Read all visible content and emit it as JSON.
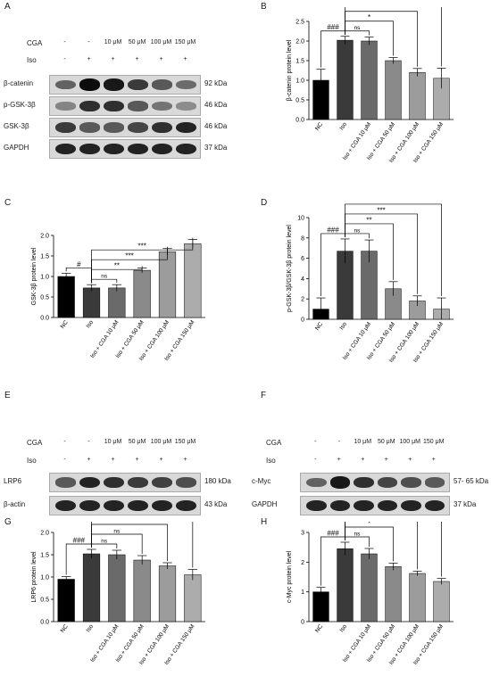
{
  "panel_letters": [
    "A",
    "B",
    "C",
    "D",
    "E",
    "F",
    "G",
    "H"
  ],
  "blot_A": {
    "treat_rows": [
      {
        "label": "CGA",
        "cells": [
          "-",
          "-",
          "10 μM",
          "50 μM",
          "100 μM",
          "150 μM"
        ]
      },
      {
        "label": "Iso",
        "cells": [
          "-",
          "+",
          "+",
          "+",
          "+",
          "+"
        ]
      }
    ],
    "bands": [
      {
        "label": "β-catenin",
        "kda": "92 kDa",
        "intensity": [
          0.55,
          0.95,
          0.9,
          0.75,
          0.6,
          0.5
        ]
      },
      {
        "label": "p-GSK-3β",
        "kda": "46 kDa",
        "intensity": [
          0.35,
          0.8,
          0.8,
          0.6,
          0.45,
          0.3
        ]
      },
      {
        "label": "GSK-3β",
        "kda": "46 kDa",
        "intensity": [
          0.75,
          0.6,
          0.6,
          0.7,
          0.8,
          0.85
        ]
      },
      {
        "label": "GAPDH",
        "kda": "37 kDa",
        "intensity": [
          0.85,
          0.85,
          0.85,
          0.85,
          0.85,
          0.85
        ]
      }
    ]
  },
  "blot_E": {
    "treat_rows": [
      {
        "label": "CGA",
        "cells": [
          "-",
          "-",
          "10 μM",
          "50 μM",
          "100 μM",
          "150 μM"
        ]
      },
      {
        "label": "Iso",
        "cells": [
          "-",
          "+",
          "+",
          "+",
          "+",
          "+"
        ]
      }
    ],
    "bands": [
      {
        "label": "LRP6",
        "kda": "180 kDa",
        "intensity": [
          0.6,
          0.85,
          0.8,
          0.75,
          0.72,
          0.65
        ]
      },
      {
        "label": "β-actin",
        "kda": "43 kDa",
        "intensity": [
          0.85,
          0.85,
          0.85,
          0.85,
          0.85,
          0.85
        ]
      }
    ]
  },
  "blot_F": {
    "treat_rows": [
      {
        "label": "CGA",
        "cells": [
          "-",
          "-",
          "10 μM",
          "50 μM",
          "100 μM",
          "150 μM"
        ]
      },
      {
        "label": "Iso",
        "cells": [
          "-",
          "+",
          "+",
          "+",
          "+",
          "+"
        ]
      }
    ],
    "bands": [
      {
        "label": "c-Myc",
        "kda": "57- 65 kDa",
        "intensity": [
          0.55,
          0.9,
          0.8,
          0.7,
          0.65,
          0.6
        ]
      },
      {
        "label": "GAPDH",
        "kda": "37 kDa",
        "intensity": [
          0.85,
          0.85,
          0.85,
          0.85,
          0.85,
          0.85
        ]
      }
    ]
  },
  "chart_data": [
    {
      "id": "B",
      "type": "bar",
      "categories": [
        "NC",
        "Iso",
        "Iso + CGA 10 μM",
        "Iso + CGA 50 μM",
        "Iso + CGA 100 μM",
        "Iso + CGA 150 μM"
      ],
      "values": [
        1.0,
        2.02,
        2.0,
        1.5,
        1.2,
        1.05
      ],
      "errors": [
        0.28,
        0.1,
        0.1,
        0.08,
        0.1,
        0.26
      ],
      "ylabel": "β-catenin protein level",
      "ylim": [
        0,
        2.5
      ],
      "yticks": [
        "0.0",
        "0.5",
        "1.0",
        "1.5",
        "2.0",
        "2.5"
      ],
      "colors": [
        "#000000",
        "#3a3a3a",
        "#6a6a6a",
        "#8a8a8a",
        "#9c9c9c",
        "#acacac"
      ],
      "annotations": [
        {
          "from": 0,
          "to": 1,
          "text": "###"
        },
        {
          "from": 1,
          "to": 2,
          "text": "ns"
        },
        {
          "from": 1,
          "to": 3,
          "text": "*"
        },
        {
          "from": 1,
          "to": 4,
          "text": "**"
        },
        {
          "from": 1,
          "to": 5,
          "text": "***"
        }
      ]
    },
    {
      "id": "C",
      "type": "bar",
      "categories": [
        "NC",
        "Iso",
        "Iso + CGA 10 μM",
        "Iso + CGA 50 μM",
        "Iso + CGA 100 μM",
        "Iso + CGA 150 μM"
      ],
      "values": [
        1.0,
        0.72,
        0.72,
        1.15,
        1.6,
        1.8
      ],
      "errors": [
        0.08,
        0.08,
        0.08,
        0.06,
        0.08,
        0.1
      ],
      "ylabel": "GSK-3β protein level",
      "ylim": [
        0,
        2.0
      ],
      "yticks": [
        "0.0",
        "0.5",
        "1.0",
        "1.5",
        "2.0"
      ],
      "colors": [
        "#000000",
        "#3a3a3a",
        "#6a6a6a",
        "#8a8a8a",
        "#9c9c9c",
        "#acacac"
      ],
      "annotations": [
        {
          "from": 0,
          "to": 1,
          "text": "#"
        },
        {
          "from": 1,
          "to": 2,
          "text": "ns"
        },
        {
          "from": 1,
          "to": 3,
          "text": "**"
        },
        {
          "from": 1,
          "to": 4,
          "text": "***"
        },
        {
          "from": 1,
          "to": 5,
          "text": "***"
        }
      ]
    },
    {
      "id": "D",
      "type": "bar",
      "categories": [
        "NC",
        "Iso",
        "Iso + CGA 10 μM",
        "Iso + CGA 50 μM",
        "Iso + CGA 100 μM",
        "Iso + CGA 150 μM"
      ],
      "values": [
        1.0,
        6.7,
        6.7,
        3.0,
        1.8,
        1.0
      ],
      "errors": [
        1.1,
        1.2,
        1.1,
        0.7,
        0.5,
        1.1
      ],
      "ylabel": "p-GSK-3β/GSK-3β protein level",
      "ylim": [
        0,
        10
      ],
      "yticks": [
        "0",
        "2",
        "4",
        "6",
        "8",
        "10"
      ],
      "colors": [
        "#000000",
        "#3a3a3a",
        "#6a6a6a",
        "#8a8a8a",
        "#9c9c9c",
        "#acacac"
      ],
      "annotations": [
        {
          "from": 0,
          "to": 1,
          "text": "###"
        },
        {
          "from": 1,
          "to": 2,
          "text": "ns"
        },
        {
          "from": 1,
          "to": 3,
          "text": "**"
        },
        {
          "from": 1,
          "to": 4,
          "text": "***"
        },
        {
          "from": 1,
          "to": 5,
          "text": "***"
        }
      ]
    },
    {
      "id": "G",
      "type": "bar",
      "categories": [
        "NC",
        "Iso",
        "Iso + CGA 10 μM",
        "Iso + CGA 50 μM",
        "Iso + CGA 100 μM",
        "Iso + CGA 150 μM"
      ],
      "values": [
        0.95,
        1.52,
        1.5,
        1.38,
        1.25,
        1.05
      ],
      "errors": [
        0.06,
        0.1,
        0.1,
        0.1,
        0.07,
        0.12
      ],
      "ylabel": "LRP6 protein level",
      "ylim": [
        0,
        2.0
      ],
      "yticks": [
        "0.0",
        "0.5",
        "1.0",
        "1.5",
        "2.0"
      ],
      "colors": [
        "#000000",
        "#3a3a3a",
        "#6a6a6a",
        "#8a8a8a",
        "#9c9c9c",
        "#acacac"
      ],
      "annotations": [
        {
          "from": 0,
          "to": 1,
          "text": "###"
        },
        {
          "from": 1,
          "to": 2,
          "text": "ns"
        },
        {
          "from": 1,
          "to": 3,
          "text": "ns"
        },
        {
          "from": 1,
          "to": 4,
          "text": "*"
        },
        {
          "from": 1,
          "to": 5,
          "text": "**"
        }
      ]
    },
    {
      "id": "H",
      "type": "bar",
      "categories": [
        "NC",
        "Iso",
        "Iso + CGA 10 μM",
        "Iso + CGA 50 μM",
        "Iso + CGA 100 μM",
        "Iso + CGA 150 μM"
      ],
      "values": [
        1.0,
        2.45,
        2.28,
        1.85,
        1.62,
        1.35
      ],
      "errors": [
        0.15,
        0.22,
        0.18,
        0.12,
        0.08,
        0.1
      ],
      "ylabel": "c-Myc protein level",
      "ylim": [
        0,
        3
      ],
      "yticks": [
        "0",
        "1",
        "2",
        "3"
      ],
      "colors": [
        "#000000",
        "#3a3a3a",
        "#6a6a6a",
        "#8a8a8a",
        "#9c9c9c",
        "#acacac"
      ],
      "annotations": [
        {
          "from": 0,
          "to": 1,
          "text": "###"
        },
        {
          "from": 1,
          "to": 2,
          "text": "ns"
        },
        {
          "from": 1,
          "to": 3,
          "text": "*"
        },
        {
          "from": 1,
          "to": 4,
          "text": "**"
        },
        {
          "from": 1,
          "to": 5,
          "text": "***"
        }
      ]
    }
  ]
}
